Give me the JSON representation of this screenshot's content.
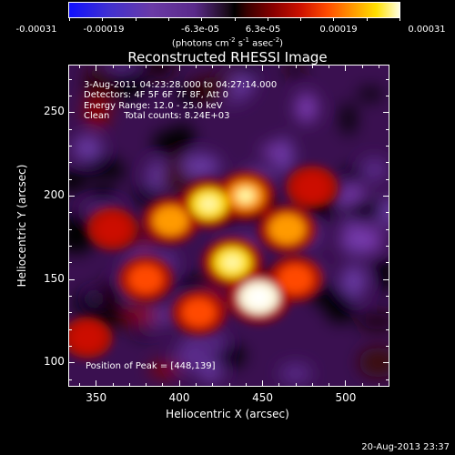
{
  "colorbar": {
    "labels": [
      "-0.00031",
      "-0.00019",
      "-6.3e-05",
      "6.3e-05",
      "0.00019",
      "0.00031"
    ],
    "units_prefix": "(photons cm",
    "units_exp1": "-2",
    "units_mid": " s",
    "units_exp2": "-1",
    "units_mid2": " asec",
    "units_exp3": "-2",
    "units_suffix": ")"
  },
  "info": {
    "time": "3-Aug-2011 04:23:28.000 to 04:27:14.000",
    "detectors": "Detectors: 4F 5F 6F 7F 8F, Att 0",
    "energy": "Energy Range: 12.0 - 25.0 keV",
    "clean": "Clean     Total counts: 8.24E+03",
    "peak": "Position of Peak = [448,139]"
  },
  "timestamp": "20-Aug-2013 23:37",
  "colors": {
    "background": "#000000",
    "text": "#ffffff"
  },
  "chart_data": {
    "type": "heatmap",
    "title": "Reconstructed RHESSI Image",
    "xlabel": "Heliocentric X (arcsec)",
    "ylabel": "Heliocentric Y (arcsec)",
    "xlim": [
      334,
      526
    ],
    "ylim": [
      86,
      278
    ],
    "xticks": [
      350,
      400,
      450,
      500
    ],
    "yticks": [
      100,
      150,
      200,
      250
    ],
    "colorbar_range": [
      -0.00031,
      0.00031
    ],
    "colormap": "blue-purple-black-red-orange-yellow-white",
    "peak_position": [
      448,
      139
    ],
    "bright_blobs": [
      {
        "x": 448,
        "y": 139,
        "intensity": 1.0
      },
      {
        "x": 432,
        "y": 160,
        "intensity": 0.85
      },
      {
        "x": 418,
        "y": 195,
        "intensity": 0.8
      },
      {
        "x": 440,
        "y": 200,
        "intensity": 0.75
      },
      {
        "x": 465,
        "y": 180,
        "intensity": 0.7
      },
      {
        "x": 395,
        "y": 185,
        "intensity": 0.65
      },
      {
        "x": 380,
        "y": 150,
        "intensity": 0.55
      },
      {
        "x": 470,
        "y": 150,
        "intensity": 0.6
      },
      {
        "x": 412,
        "y": 130,
        "intensity": 0.5
      },
      {
        "x": 360,
        "y": 180,
        "intensity": 0.4
      },
      {
        "x": 345,
        "y": 115,
        "intensity": 0.35
      },
      {
        "x": 480,
        "y": 205,
        "intensity": 0.45
      }
    ]
  }
}
